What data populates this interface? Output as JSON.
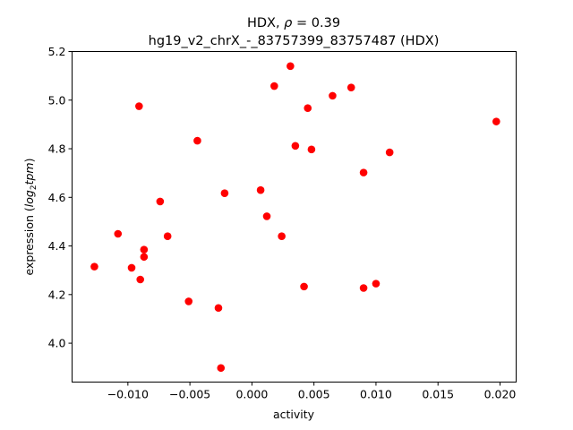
{
  "chart_data": {
    "type": "scatter",
    "title_line1_prefix": "HDX, ",
    "title_line1_rho": "ρ",
    "title_line1_suffix": " = 0.39",
    "title_line2": "hg19_v2_chrX_-_83757399_83757487 (HDX)",
    "xlabel": "activity",
    "ylabel_prefix": "expression (",
    "ylabel_log": "log",
    "ylabel_sub": "2",
    "ylabel_tpm": "tpm",
    "ylabel_suffix": ")",
    "xlim": [
      -0.0145,
      0.0213
    ],
    "ylim": [
      3.84,
      5.2
    ],
    "x_ticks": [
      -0.01,
      -0.005,
      0.0,
      0.005,
      0.01,
      0.015,
      0.02
    ],
    "x_tick_labels": [
      "−0.010",
      "−0.005",
      "0.000",
      "0.005",
      "0.010",
      "0.015",
      "0.020"
    ],
    "y_ticks": [
      4.0,
      4.2,
      4.4,
      4.6,
      4.8,
      5.0,
      5.2
    ],
    "y_tick_labels": [
      "4.0",
      "4.2",
      "4.4",
      "4.6",
      "4.8",
      "5.0",
      "5.2"
    ],
    "marker_color": "#ff0000",
    "points": [
      {
        "x": -0.0127,
        "y": 4.315
      },
      {
        "x": -0.0108,
        "y": 4.45
      },
      {
        "x": -0.0097,
        "y": 4.31
      },
      {
        "x": -0.0091,
        "y": 4.975
      },
      {
        "x": -0.009,
        "y": 4.262
      },
      {
        "x": -0.0087,
        "y": 4.385
      },
      {
        "x": -0.0087,
        "y": 4.355
      },
      {
        "x": -0.0074,
        "y": 4.583
      },
      {
        "x": -0.0068,
        "y": 4.44
      },
      {
        "x": -0.0051,
        "y": 4.172
      },
      {
        "x": -0.0044,
        "y": 4.833
      },
      {
        "x": -0.0027,
        "y": 4.145
      },
      {
        "x": -0.0025,
        "y": 3.898
      },
      {
        "x": -0.0022,
        "y": 4.617
      },
      {
        "x": 0.0007,
        "y": 4.63
      },
      {
        "x": 0.0012,
        "y": 4.522
      },
      {
        "x": 0.0018,
        "y": 5.058
      },
      {
        "x": 0.0024,
        "y": 4.44
      },
      {
        "x": 0.0031,
        "y": 5.14
      },
      {
        "x": 0.0035,
        "y": 4.812
      },
      {
        "x": 0.0042,
        "y": 4.233
      },
      {
        "x": 0.0045,
        "y": 4.967
      },
      {
        "x": 0.0048,
        "y": 4.797
      },
      {
        "x": 0.0065,
        "y": 5.018
      },
      {
        "x": 0.008,
        "y": 5.052
      },
      {
        "x": 0.009,
        "y": 4.702
      },
      {
        "x": 0.009,
        "y": 4.227
      },
      {
        "x": 0.01,
        "y": 4.245
      },
      {
        "x": 0.0111,
        "y": 4.785
      },
      {
        "x": 0.0197,
        "y": 4.912
      }
    ]
  }
}
